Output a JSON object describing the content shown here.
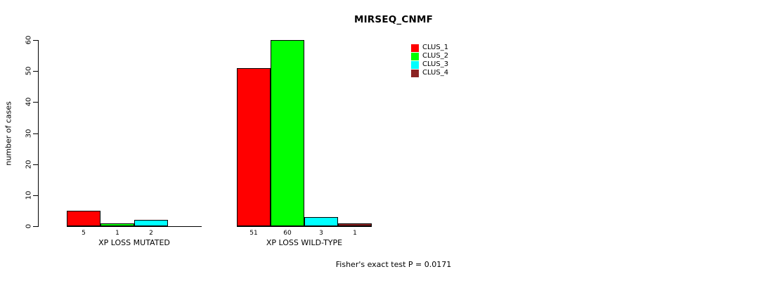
{
  "chart_data": {
    "type": "bar",
    "title": "MIRSEQ_CNMF",
    "ylabel": "number of cases",
    "annotation": "Fisher's exact test P = 0.0171",
    "categories": [
      "XP LOSS MUTATED",
      "XP LOSS WILD-TYPE"
    ],
    "series": [
      {
        "name": "CLUS_1",
        "color": "#FF0000",
        "values": [
          5,
          51
        ]
      },
      {
        "name": "CLUS_2",
        "color": "#00FF00",
        "values": [
          1,
          60
        ]
      },
      {
        "name": "CLUS_3",
        "color": "#00FFFF",
        "values": [
          2,
          3
        ]
      },
      {
        "name": "CLUS_4",
        "color": "#8B2323",
        "values": [
          0,
          1
        ]
      }
    ],
    "bar_labels": [
      [
        "5",
        "1",
        "2",
        ""
      ],
      [
        "51",
        "60",
        "3",
        "1"
      ]
    ],
    "yticks": [
      0,
      10,
      20,
      30,
      40,
      50,
      60
    ],
    "ylim": [
      0,
      60
    ],
    "grid": false,
    "legend_position": "top-right"
  }
}
